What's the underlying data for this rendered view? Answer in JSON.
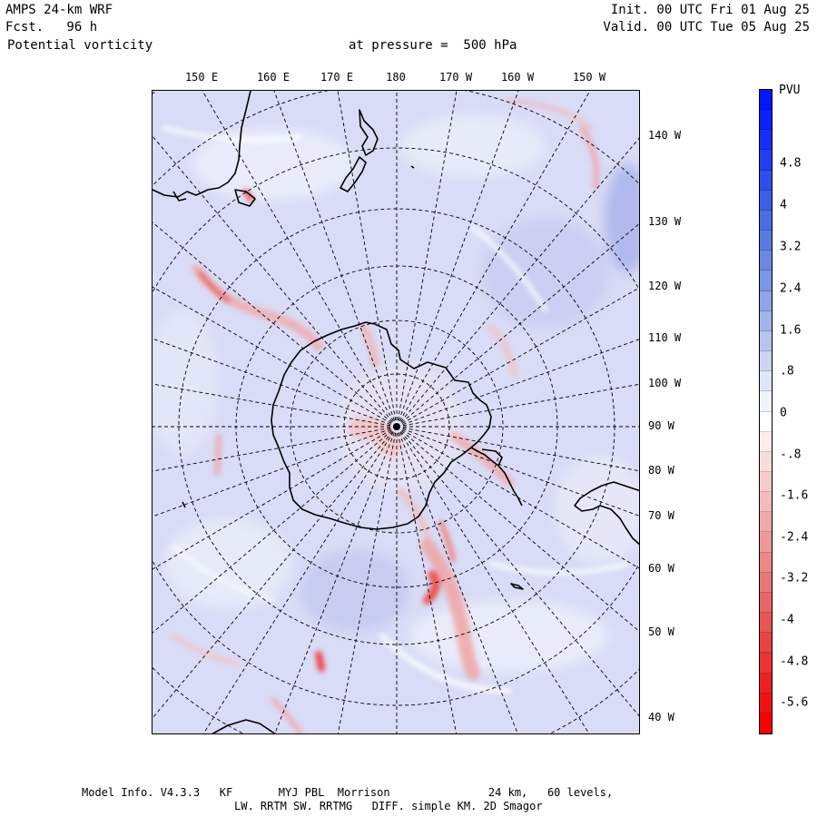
{
  "header": {
    "model": "AMPS 24-km WRF",
    "forecast": "Fcst.   96 h",
    "variable": "Potential vorticity",
    "pressure": "at pressure =  500 hPa",
    "init": "Init. 00 UTC Fri 01 Aug 25",
    "valid": "Valid. 00 UTC Tue 05 Aug 25"
  },
  "map": {
    "projection": "south-polar-stereographic",
    "lon_labels": [
      "150 E",
      "160 E",
      "170 E",
      "180",
      "170 W",
      "160 W",
      "150 W"
    ],
    "lat_side_labels": [
      "140 W",
      "130 W",
      "120 W",
      "110 W",
      "100 W",
      "90 W",
      "80 W",
      "70 W",
      "60 W",
      "50 W",
      "40 W"
    ],
    "colors": {
      "background": "#d9dcf6",
      "coast": "#000000",
      "grid": "#000000"
    }
  },
  "legend": {
    "unit": "PVU",
    "labels": [
      "4.8",
      "4",
      "3.2",
      "2.4",
      "1.6",
      ".8",
      "0",
      "-.8",
      "-1.6",
      "-2.4",
      "-3.2",
      "-4",
      "-4.8",
      "-5.6"
    ],
    "colors": [
      "#0018ff",
      "#0a22fc",
      "#1530f6",
      "#2140f0",
      "#2e50ea",
      "#3c5fe6",
      "#4a6ee2",
      "#5a7be0",
      "#6a88df",
      "#7b96e2",
      "#8ea5e6",
      "#a2b5ea",
      "#b7c5ee",
      "#ccd6f3",
      "#e0e6f8",
      "#f2f4fc",
      "#ffffff",
      "#fcecec",
      "#f9dcdc",
      "#f6cccc",
      "#f3bbbb",
      "#f0aaaa",
      "#ee9999",
      "#ec8888",
      "#ea7777",
      "#e96666",
      "#e85555",
      "#e84444",
      "#ea3333",
      "#ec2222",
      "#f01111",
      "#ff0000"
    ]
  },
  "footer": {
    "line1": "Model Info. V4.3.3   KF       MYJ PBL  Morrison               24 km,   60 levels,",
    "line2": "LW. RRTM SW. RRTMG   DIFF. simple KM. 2D Smagor"
  }
}
